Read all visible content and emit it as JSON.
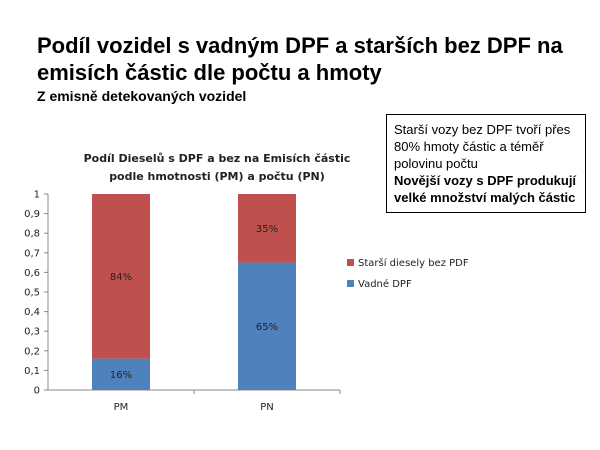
{
  "slide": {
    "title": "Podíl vozidel s vadným DPF a starších bez DPF na emisích částic dle počtu a hmoty",
    "subtitle": "Z emisně detekovaných vozidel"
  },
  "callout": {
    "normal_text": "Starší vozy bez DPF tvoří přes 80% hmoty částic a téměř polovinu počtu",
    "bold_text": "Novější vozy s DPF produkují velké množství malých částic"
  },
  "chart_data": {
    "type": "bar",
    "stacked": true,
    "title_lines": [
      "Podíl Dieselů s DPF a bez na Emisích částic",
      "podle hmotnosti (PM) a počtu (PN)"
    ],
    "categories": [
      "PM",
      "PN"
    ],
    "series": [
      {
        "name": "Vadné DPF",
        "values": [
          0.16,
          0.65
        ],
        "labels": [
          "16%",
          "65%"
        ],
        "color": "#4f81bd"
      },
      {
        "name": "Starší diesely bez PDF",
        "values": [
          0.84,
          0.35
        ],
        "labels": [
          "84%",
          "35%"
        ],
        "color": "#c0504d"
      }
    ],
    "ylim": [
      0,
      1
    ],
    "yticks": [
      "0",
      "0,1",
      "0,2",
      "0,3",
      "0,4",
      "0,5",
      "0,6",
      "0,7",
      "0,8",
      "0,9",
      "1"
    ],
    "legend_position": "right",
    "legend_order": [
      "Starší diesely bez PDF",
      "Vadné DPF"
    ],
    "grid": false
  }
}
